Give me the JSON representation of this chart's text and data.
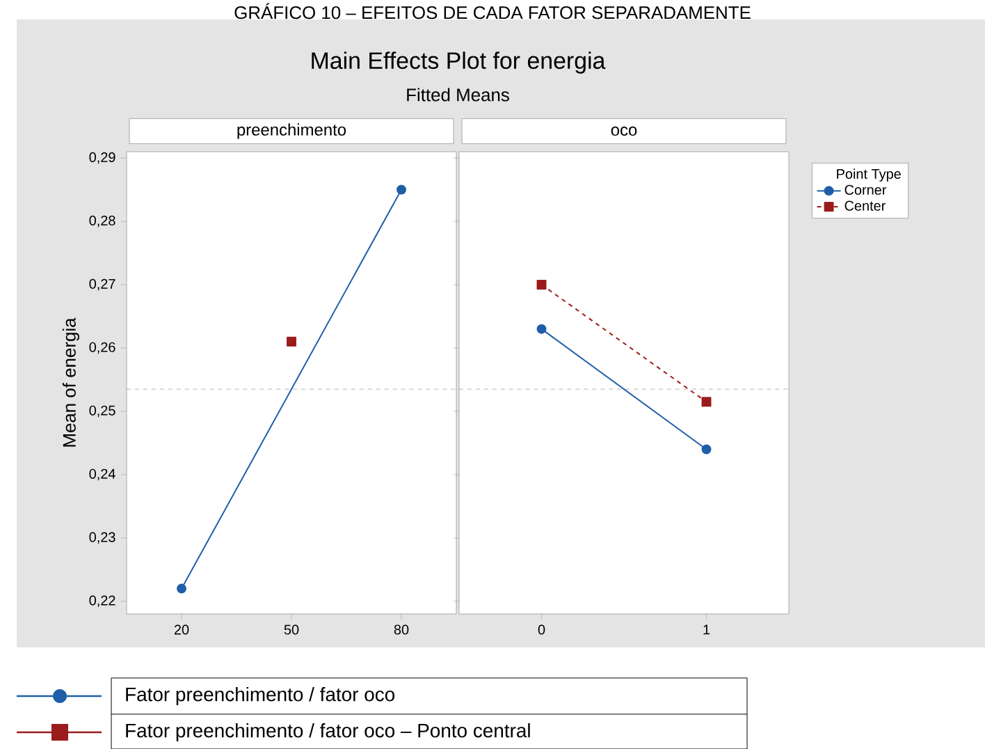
{
  "chart_data": [
    {
      "type": "other",
      "title": "Main Effects Plot for energia",
      "subtitle": "Fitted Means",
      "annotations": [
        "GRÁFICO 10 – EFEITOS DE CADA FATOR SEPARADAMENTE",
        "Fator preenchimento / fator oco",
        "Fator preenchimento / fator oco – Ponto central"
      ]
    },
    {
      "type": "line",
      "title": "preenchimento",
      "ylabel": "Mean of energia",
      "xlim": [
        5,
        95
      ],
      "xticks": [
        20,
        50,
        80
      ],
      "ylim": [
        0.218,
        0.291
      ],
      "yticks": [
        {
          "value": 0.22,
          "label": "0,22"
        },
        {
          "value": 0.23,
          "label": "0,23"
        },
        {
          "value": 0.24,
          "label": "0,24"
        },
        {
          "value": 0.25,
          "label": "0,25"
        },
        {
          "value": 0.26,
          "label": "0,26"
        },
        {
          "value": 0.27,
          "label": "0,27"
        },
        {
          "value": 0.28,
          "label": "0,28"
        },
        {
          "value": 0.29,
          "label": "0,29"
        }
      ],
      "series": [
        {
          "color": "#1f5fa8",
          "x": [
            20,
            80
          ],
          "values": [
            0.222,
            0.285
          ],
          "marker": "circle",
          "line_style": "solid"
        },
        {
          "color": "#9b1c1c",
          "x": [
            50
          ],
          "values": [
            0.261
          ],
          "marker": "square",
          "line_style": "dashed"
        }
      ],
      "ref_lines": [
        {
          "axis": "y",
          "value": 0.2535,
          "color": "#a0a0a0",
          "line_style": "dashed"
        }
      ]
    },
    {
      "type": "line",
      "title": "oco",
      "tick_labels": "x",
      "xlim": [
        -0.5,
        1.5
      ],
      "xticks": [
        0,
        1
      ],
      "ylim": [
        0.218,
        0.291
      ],
      "yticks": [
        0.22,
        0.23,
        0.24,
        0.25,
        0.26,
        0.27,
        0.28,
        0.29
      ],
      "legend": "right",
      "legend_title": "Point Type",
      "series": [
        {
          "name": "Corner",
          "color": "#1f5fa8",
          "x": [
            0,
            1
          ],
          "values": [
            0.263,
            0.244
          ],
          "marker": "circle",
          "line_style": "solid"
        },
        {
          "name": "Center",
          "color": "#9b1c1c",
          "x": [
            0,
            1
          ],
          "values": [
            0.27,
            0.2515
          ],
          "marker": "square",
          "line_style": "dashed"
        }
      ],
      "ref_lines": [
        {
          "axis": "y",
          "value": 0.2535,
          "color": "#a0a0a0",
          "line_style": "dashed"
        }
      ]
    }
  ]
}
